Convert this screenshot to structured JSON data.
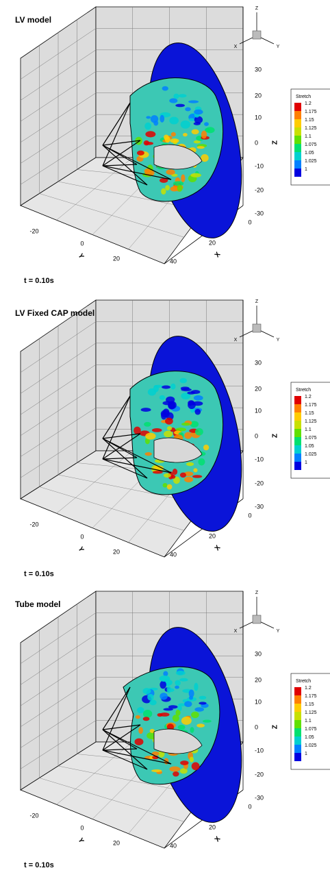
{
  "panels": [
    {
      "title": "LV model",
      "time": "t = 0.10s",
      "z_axis": {
        "label": "Z",
        "ticks": [
          "30",
          "20",
          "10",
          "0",
          "-10",
          "-20",
          "-30"
        ]
      },
      "y_axis": {
        "label": "Y",
        "ticks": [
          "-20",
          "0",
          "20"
        ]
      },
      "x_axis": {
        "label": "X",
        "ticks": [
          "0",
          "20",
          "40"
        ]
      },
      "triad": {
        "x": "X",
        "y": "Y",
        "z": "Z"
      },
      "legend": {
        "title": "Stretch",
        "labels": [
          "1.2",
          "1.175",
          "1.15",
          "1.125",
          "1.1",
          "1.075",
          "1.05",
          "1.025",
          "1"
        ]
      }
    },
    {
      "title": "LV Fixed CAP model",
      "time": "t = 0.10s",
      "z_axis": {
        "label": "Z",
        "ticks": [
          "30",
          "20",
          "10",
          "0",
          "-10",
          "-20",
          "-30"
        ]
      },
      "y_axis": {
        "label": "Y",
        "ticks": [
          "-20",
          "0",
          "20"
        ]
      },
      "x_axis": {
        "label": "X",
        "ticks": [
          "0",
          "20",
          "40"
        ]
      },
      "triad": {
        "x": "X",
        "y": "Y",
        "z": "Z"
      },
      "legend": {
        "title": "Stretch",
        "labels": [
          "1.2",
          "1.175",
          "1.15",
          "1.125",
          "1.1",
          "1.075",
          "1.05",
          "1.025",
          "1"
        ]
      }
    },
    {
      "title": "Tube model",
      "time": "t = 0.10s",
      "z_axis": {
        "label": "Z",
        "ticks": [
          "30",
          "20",
          "10",
          "0",
          "-10",
          "-20",
          "-30"
        ]
      },
      "y_axis": {
        "label": "Y",
        "ticks": [
          "-20",
          "0",
          "20"
        ]
      },
      "x_axis": {
        "label": "X",
        "ticks": [
          "0",
          "20",
          "40"
        ]
      },
      "triad": {
        "x": "X",
        "y": "Y",
        "z": "Z"
      },
      "legend": {
        "title": "Stretch",
        "labels": [
          "1.2",
          "1.175",
          "1.15",
          "1.125",
          "1.1",
          "1.075",
          "1.05",
          "1.025",
          "1"
        ]
      }
    }
  ]
}
